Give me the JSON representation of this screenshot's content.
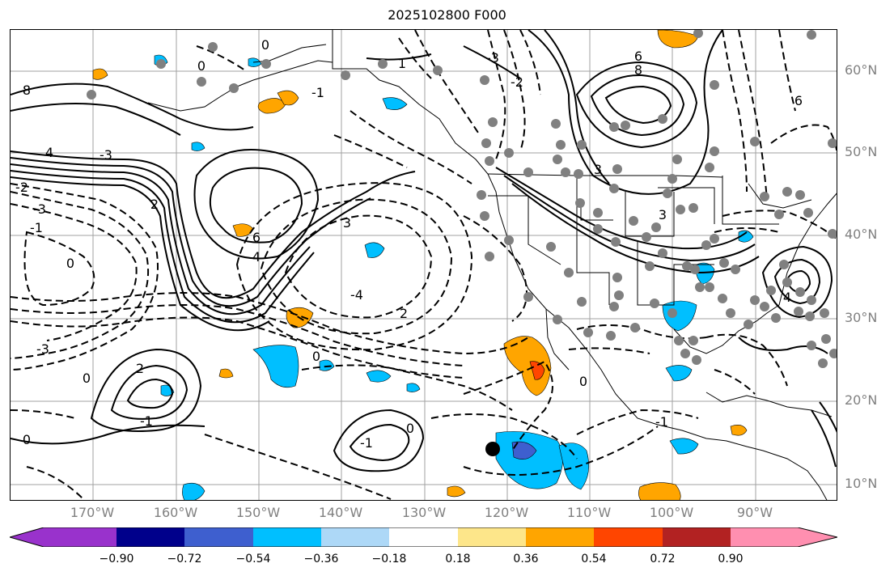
{
  "title": "2025102800 F000",
  "lon_labels": [
    "170°W",
    "160°W",
    "150°W",
    "140°W",
    "130°W",
    "120°W",
    "110°W",
    "100°W",
    "90°W"
  ],
  "lat_labels": [
    "60°N",
    "50°N",
    "40°N",
    "30°N",
    "20°N",
    "10°N"
  ],
  "contour_labels": [
    "0",
    "1",
    "8",
    "4",
    "6",
    "8",
    "-3",
    "-2",
    "-1",
    "0",
    "4",
    "6",
    "3",
    "-3",
    "-4",
    "2",
    "-3",
    "0",
    "2",
    "-1",
    "0",
    "-1",
    "0",
    "-1",
    "0",
    "0",
    "-2",
    "-3",
    "3",
    "3",
    "4",
    "2",
    "6",
    "-1",
    "0"
  ],
  "colorbar": {
    "tick_labels": [
      "−0.90",
      "−0.72",
      "−0.54",
      "−0.36",
      "−0.18",
      "0.18",
      "0.36",
      "0.54",
      "0.72",
      "0.90"
    ],
    "colors": [
      "#9932cc",
      "#00008b",
      "#3e5fcf",
      "#00bfff",
      "#add8f7",
      "#ffffff",
      "#fde68a",
      "#ffa500",
      "#ff4500",
      "#b22222",
      "#ff8fb0"
    ]
  },
  "map_colors": {
    "contour": "#000000",
    "grid": "#a0a0a0",
    "station": "#808080",
    "storm_marker": "#000000"
  },
  "icons": [
    "storm-marker-icon",
    "station-dot-icon"
  ]
}
